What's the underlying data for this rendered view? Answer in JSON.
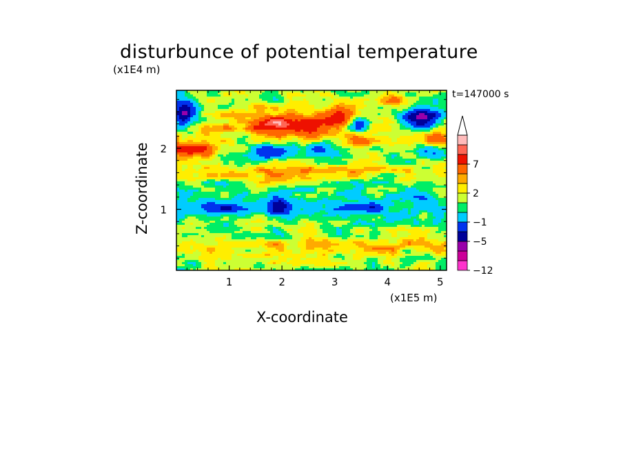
{
  "chart_data": {
    "type": "heatmap",
    "title": "disturbunce of potential temperature",
    "xlabel": "X-coordinate",
    "ylabel": "Z-coordinate",
    "x_unit": "(x1E5 m)",
    "y_unit": "(x1E4 m)",
    "time_label": "t=147000 s",
    "xlim": [
      0,
      5.12
    ],
    "ylim": [
      0,
      2.95
    ],
    "xticks": [
      "1",
      "2",
      "3",
      "4",
      "5"
    ],
    "yticks": [
      "1",
      "2"
    ],
    "colorbar": {
      "levels": [
        -12,
        -9,
        -7,
        -5,
        -3,
        -1,
        0,
        1,
        2,
        3,
        5,
        7,
        9
      ],
      "tick_labels": [
        "7",
        "2",
        "−1",
        "−5",
        "−12"
      ],
      "colors": [
        "#ff33cc",
        "#cc0099",
        "#9900aa",
        "#000099",
        "#0033ee",
        "#00ccff",
        "#00ee66",
        "#ccff33",
        "#ffee00",
        "#ffaa00",
        "#ff6600",
        "#ee1100",
        "#ff6655",
        "#ffbbbb"
      ],
      "extend": "max"
    }
  },
  "page": {
    "title": "disturbunce of potential temperature",
    "y_unit": "(x1E4 m)",
    "time_label": "t=147000 s",
    "x_unit": "(x1E5 m)",
    "xlabel": "X-coordinate",
    "ylabel": "Z-coordinate"
  }
}
